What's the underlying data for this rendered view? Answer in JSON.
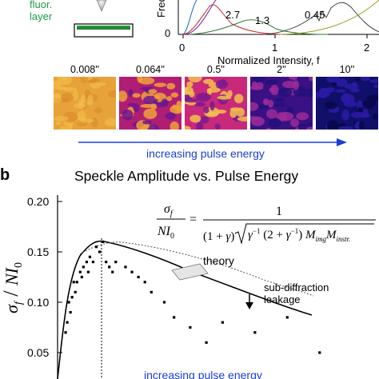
{
  "panel_a": {
    "layer_label_line1": "fluor.",
    "layer_label_line2": "layer",
    "histogram": {
      "ylabel": "Freq",
      "ytick_0": "0",
      "xlabel": "Normalized Intensity, f",
      "xticks": [
        "0",
        "1",
        "2"
      ],
      "peak_labels": [
        "2.7",
        "1.3",
        "0.45"
      ]
    },
    "thumbnails": [
      {
        "label": "0.008''"
      },
      {
        "label": "0.064''"
      },
      {
        "label": "0.5''"
      },
      {
        "label": "2''"
      },
      {
        "label": "10''"
      }
    ],
    "arrow_label": "increasing pulse energy"
  },
  "panel_b": {
    "panel_letter": "b",
    "title": "Speckle Amplitude vs. Pulse Energy",
    "ylabel": "σf / NI0",
    "yticks": [
      "0.20",
      "0.15",
      "0.10",
      "0.05"
    ],
    "equation": {
      "lhs_num": "σf",
      "lhs_den": "NI0",
      "rhs_num": "1",
      "rhs_den": "(1+γ) √(γ⁻¹ (2+γ⁻¹) Mimg Minstr.)"
    },
    "legend_theory": "theory",
    "annotation_line1": "sub-diffraction",
    "annotation_line2": "leakage",
    "bottom_label": "increasing pulse energy"
  },
  "chart_data": {
    "type": "scatter",
    "title": "Speckle Amplitude vs. Pulse Energy",
    "ylabel": "σf / NI0",
    "ylim": [
      0.04,
      0.2
    ],
    "series": [
      {
        "values": [
          [
            0.115,
            0.07
          ],
          [
            0.12,
            0.08
          ],
          [
            0.125,
            0.1
          ],
          [
            0.13,
            0.09
          ],
          [
            0.135,
            0.105
          ],
          [
            0.14,
            0.12
          ],
          [
            0.145,
            0.11
          ],
          [
            0.15,
            0.12
          ],
          [
            0.16,
            0.13
          ],
          [
            0.165,
            0.125
          ],
          [
            0.17,
            0.135
          ],
          [
            0.18,
            0.14
          ],
          [
            0.185,
            0.13
          ],
          [
            0.19,
            0.145
          ],
          [
            0.2,
            0.14
          ],
          [
            0.21,
            0.155
          ],
          [
            0.22,
            0.15
          ],
          [
            0.23,
            0.16
          ],
          [
            0.24,
            0.14
          ],
          [
            0.25,
            0.135
          ],
          [
            0.26,
            0.13
          ],
          [
            0.27,
            0.14
          ],
          [
            0.3,
            0.135
          ],
          [
            0.32,
            0.13
          ],
          [
            0.34,
            0.125
          ],
          [
            0.36,
            0.12
          ],
          [
            0.38,
            0.11
          ],
          [
            0.42,
            0.1
          ],
          [
            0.45,
            0.085
          ],
          [
            0.5,
            0.075
          ],
          [
            0.55,
            0.06
          ],
          [
            0.6,
            0.08
          ],
          [
            0.7,
            0.07
          ],
          [
            0.8,
            0.085
          ],
          [
            0.9,
            0.05
          ]
        ]
      }
    ]
  }
}
